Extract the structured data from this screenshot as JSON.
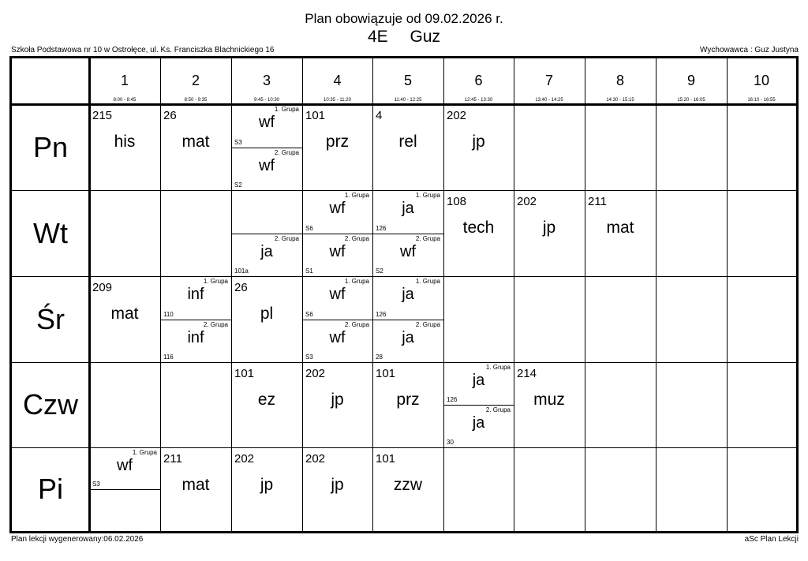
{
  "header": {
    "title": "Plan obowiązuje od 09.02.2026 r.",
    "class_name": "4E  Guz",
    "school": "Szkoła Podstawowa nr 10 w Ostrołęce, ul. Ks. Franciszka Blachnickiego 16",
    "teacher": "Wychowawca : Guz Justyna"
  },
  "footer": {
    "generated": "Plan lekcji wygenerowany:06.02.2026",
    "software": "aSc Plan Lekcji"
  },
  "periods": [
    {
      "num": "1",
      "time": "8:00 - 8:45"
    },
    {
      "num": "2",
      "time": "8:50 - 9:35"
    },
    {
      "num": "3",
      "time": "9:45 - 10:30"
    },
    {
      "num": "4",
      "time": "10:35 - 11:20"
    },
    {
      "num": "5",
      "time": "11:40 - 12:25"
    },
    {
      "num": "6",
      "time": "12:45 - 13:30"
    },
    {
      "num": "7",
      "time": "13:40 - 14:25"
    },
    {
      "num": "8",
      "time": "14:30 - 15:15"
    },
    {
      "num": "9",
      "time": "15:20 - 16:05"
    },
    {
      "num": "10",
      "time": "16:10 - 16:55"
    }
  ],
  "days": [
    {
      "name": "Pn",
      "cells": [
        {
          "room": "215",
          "subject": "his"
        },
        {
          "room": "26",
          "subject": "mat"
        },
        {
          "groups": [
            {
              "label": "1. Grupa",
              "subject": "wf",
              "room": "S3"
            },
            {
              "label": "2. Grupa",
              "subject": "wf",
              "room": "S2"
            }
          ]
        },
        {
          "room": "101",
          "subject": "prz"
        },
        {
          "room": "4",
          "subject": "rel"
        },
        {
          "room": "202",
          "subject": "jp"
        },
        null,
        null,
        null,
        null
      ]
    },
    {
      "name": "Wt",
      "cells": [
        null,
        null,
        {
          "groups": [
            null,
            {
              "label": "2. Grupa",
              "subject": "ja",
              "room": "101a"
            }
          ]
        },
        {
          "groups": [
            {
              "label": "1. Grupa",
              "subject": "wf",
              "room": "S6"
            },
            {
              "label": "2. Grupa",
              "subject": "wf",
              "room": "S1"
            }
          ]
        },
        {
          "groups": [
            {
              "label": "1. Grupa",
              "subject": "ja",
              "room": "126"
            },
            {
              "label": "2. Grupa",
              "subject": "wf",
              "room": "S2"
            }
          ]
        },
        {
          "room": "108",
          "subject": "tech"
        },
        {
          "room": "202",
          "subject": "jp"
        },
        {
          "room": "211",
          "subject": "mat"
        },
        null,
        null
      ]
    },
    {
      "name": "Śr",
      "cells": [
        {
          "room": "209",
          "subject": "mat"
        },
        {
          "groups": [
            {
              "label": "1. Grupa",
              "subject": "inf",
              "room": "110"
            },
            {
              "label": "2. Grupa",
              "subject": "inf",
              "room": "116"
            }
          ]
        },
        {
          "room": "26",
          "subject": "pl"
        },
        {
          "groups": [
            {
              "label": "1. Grupa",
              "subject": "wf",
              "room": "S6"
            },
            {
              "label": "2. Grupa",
              "subject": "wf",
              "room": "S3"
            }
          ]
        },
        {
          "groups": [
            {
              "label": "1. Grupa",
              "subject": "ja",
              "room": "126"
            },
            {
              "label": "2. Grupa",
              "subject": "ja",
              "room": "28"
            }
          ]
        },
        null,
        null,
        null,
        null,
        null
      ]
    },
    {
      "name": "Czw",
      "cells": [
        null,
        null,
        {
          "room": "101",
          "subject": "ez"
        },
        {
          "room": "202",
          "subject": "jp"
        },
        {
          "room": "101",
          "subject": "prz"
        },
        {
          "groups": [
            {
              "label": "1. Grupa",
              "subject": "ja",
              "room": "126"
            },
            {
              "label": "2. Grupa",
              "subject": "ja",
              "room": "30"
            }
          ]
        },
        {
          "room": "214",
          "subject": "muz"
        },
        null,
        null,
        null
      ]
    },
    {
      "name": "Pi",
      "cells": [
        {
          "groups": [
            {
              "label": "1. Grupa",
              "subject": "wf",
              "room": "S3"
            },
            null
          ]
        },
        {
          "room": "211",
          "subject": "mat"
        },
        {
          "room": "202",
          "subject": "jp"
        },
        {
          "room": "202",
          "subject": "jp"
        },
        {
          "room": "101",
          "subject": "zzw"
        },
        null,
        null,
        null,
        null,
        null
      ]
    }
  ]
}
